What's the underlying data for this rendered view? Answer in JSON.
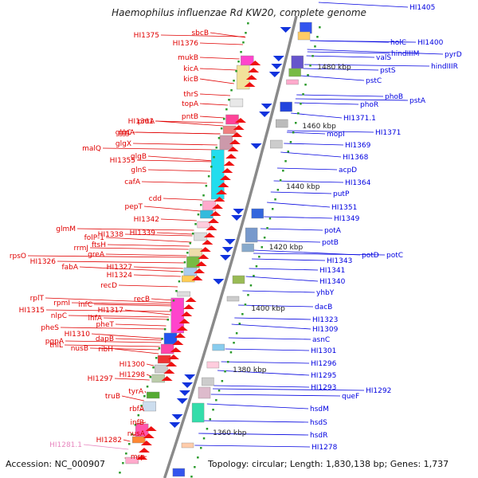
{
  "title": "Haemophilus influenzae Rd KW20, complete genome",
  "accession": "Accession: NC_000907",
  "summary": "Topology: circular; Length: 1,830,138 bp; Genes: 1,737",
  "colors": {
    "left_label": "#e00000",
    "right_label": "#0000e0",
    "pseudo_label": "#e888c0",
    "backbone": "#8a8a8a",
    "tick": "#2a9a2a"
  },
  "kbp_marks": [
    "1480 kbp",
    "1460 kbp",
    "1440 kbp",
    "1420 kbp",
    "1400 kbp",
    "1380 kbp",
    "1360 kbp"
  ],
  "left_genes": [
    "sbcB",
    "HI1375",
    "HI1376",
    "mukB",
    "kicA",
    "kicB",
    "thrS",
    "topA",
    "pntB",
    "HI1361",
    "pntA",
    "glgC",
    "glgA",
    "glgX",
    "malQ",
    "glgB",
    "HI1355",
    "glnS",
    "cafA",
    "cdd",
    "pepT",
    "HI1342",
    "glmM",
    "HI1338",
    "HI1339",
    "folP-1",
    "rrmJ",
    "ftsH",
    "rpsO",
    "greA",
    "fabA",
    "HI1327",
    "HI1326",
    "HI1324",
    "recD",
    "rplT",
    "rpmI",
    "infC",
    "recB",
    "HI1315",
    "HI1317",
    "nlpC",
    "ihfA",
    "pheS",
    "pheT",
    "HI1310",
    "pgpA",
    "thiL",
    "dapB",
    "nusB",
    "ribH",
    "HI1300",
    "HI1298",
    "HI1297",
    "tyrA",
    "truB",
    "rbfA",
    "infB",
    "nusA",
    "HI1282",
    "HI1281.1",
    "mrp"
  ],
  "right_genes": [
    "HI1405",
    "holC",
    "HI1400",
    "valS",
    "pyrD",
    "hindIIIM",
    "hindIIIR",
    "pstS",
    "pstC",
    "phoB",
    "pstA",
    "phoR",
    "HI1371.1",
    "mopI",
    "HI1371",
    "HI1369",
    "HI1368",
    "acpD",
    "HI1364",
    "putP",
    "HI1351",
    "HI1349",
    "potA",
    "potB",
    "potD",
    "potC",
    "HI1343",
    "HI1341",
    "HI1340",
    "yhbY",
    "dacB",
    "HI1323",
    "HI1309",
    "asnC",
    "HI1301",
    "HI1296",
    "HI1295",
    "HI1293",
    "HI1292",
    "queF",
    "hsdM",
    "hsdS",
    "hsdR",
    "HI1278"
  ]
}
